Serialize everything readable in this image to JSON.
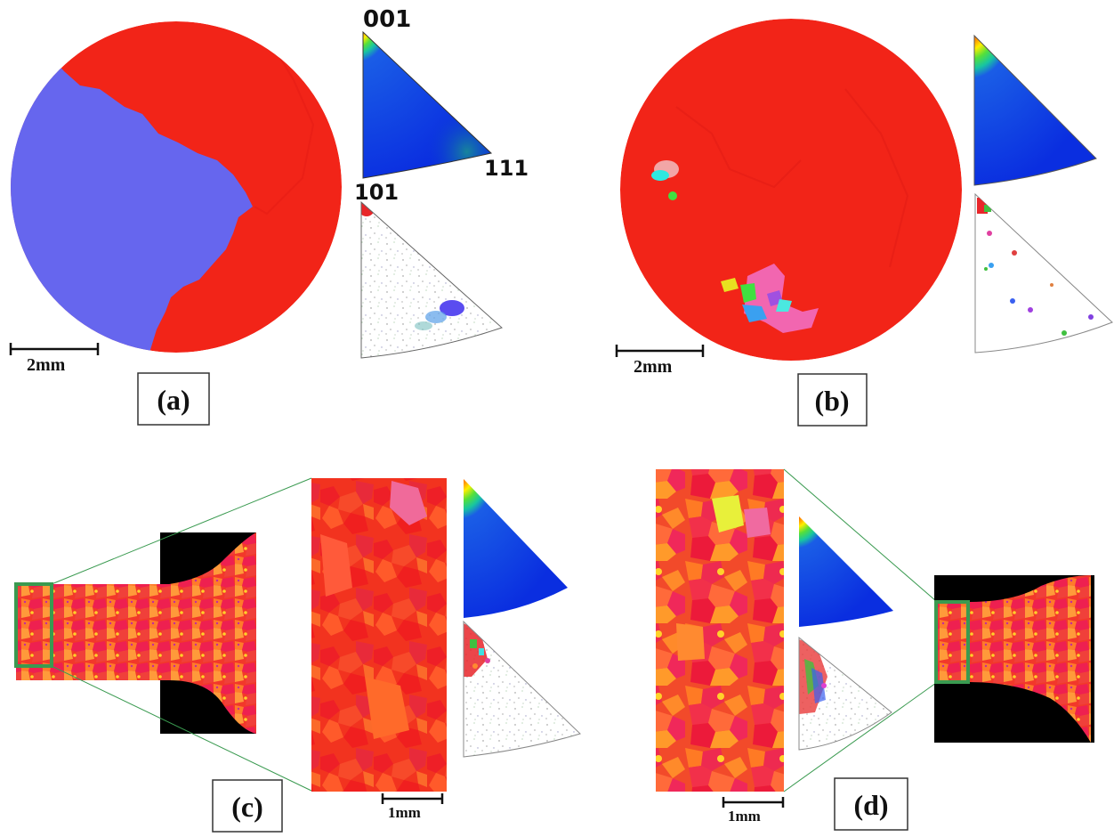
{
  "panels": {
    "a": {
      "label": "(a)",
      "scale_bar": "2mm",
      "ipf_labels": {
        "top": "001",
        "right": "111",
        "left": "101"
      }
    },
    "b": {
      "label": "(b)",
      "scale_bar": "2mm"
    },
    "c": {
      "label": "(c)",
      "scale_bar": "1mm"
    },
    "d": {
      "label": "(d)",
      "scale_bar": "1mm"
    }
  },
  "colors": {
    "red_grain": "#f22418",
    "blue_grain": "#6666ee",
    "ipf_blue": "#0a2ee0",
    "zoom_box": "#3a9a50",
    "black_mask": "#000000"
  }
}
